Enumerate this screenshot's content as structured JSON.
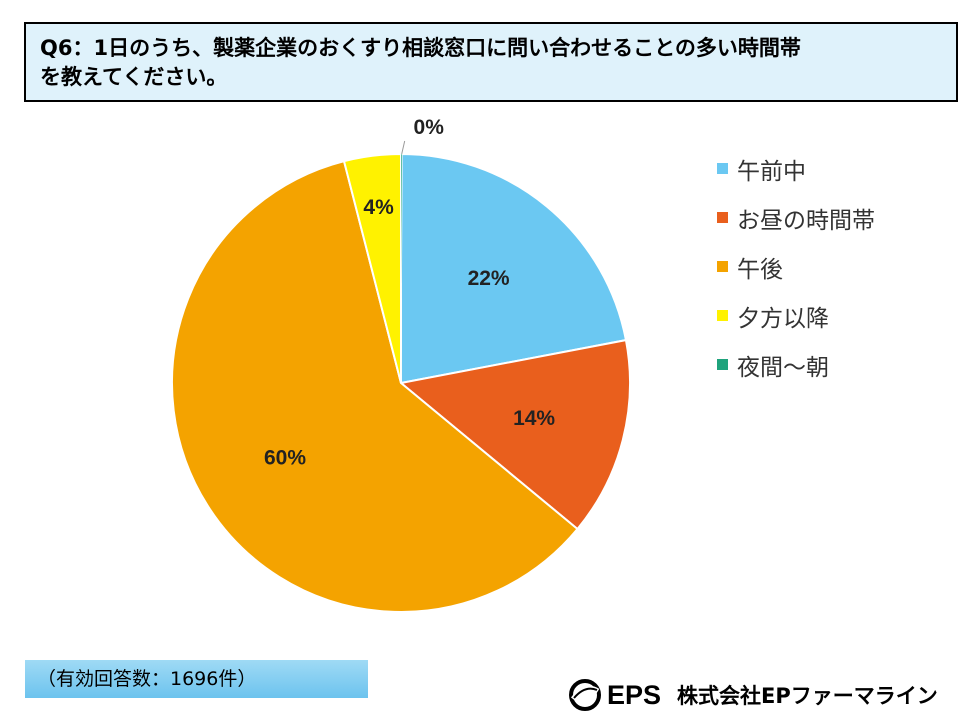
{
  "title": {
    "line1": "Q6：1日のうち、製薬企業のおくすり相談窓口に問い合わせることの多い時間帯",
    "line2": "を教えてください。"
  },
  "chart_data": {
    "type": "pie",
    "categories": [
      "午前中",
      "お昼の時間帯",
      "午後",
      "夕方以降",
      "夜間～朝"
    ],
    "values": [
      22,
      14,
      60,
      4,
      0
    ],
    "value_labels": [
      "22%",
      "14%",
      "60%",
      "4%",
      "0%"
    ],
    "colors": [
      "#6bc8f2",
      "#e95f1d",
      "#f4a300",
      "#fff200",
      "#1fa37c"
    ],
    "start_angle_deg": 0,
    "direction": "clockwise",
    "legend_position": "right",
    "title": "Q6：1日のうち、製薬企業のおくすり相談窓口に問い合わせることの多い時間帯を教えてください。"
  },
  "footnote": "（有効回答数：1696件）",
  "brand": {
    "logo_icon": "eps-swoosh-icon",
    "abbr": "EPS",
    "name": "株式会社EPファーマライン"
  }
}
